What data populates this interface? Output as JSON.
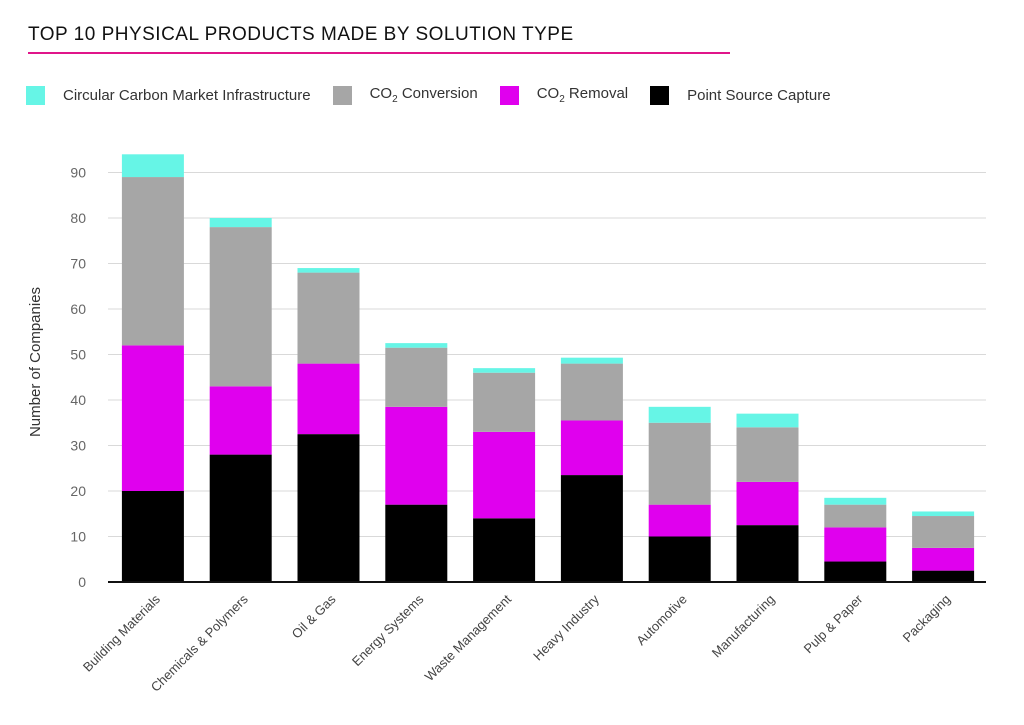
{
  "chart_data": {
    "type": "bar",
    "stacked": true,
    "title": "TOP 10 PHYSICAL PRODUCTS MADE BY SOLUTION TYPE",
    "ylabel": "Number of Companies",
    "xlabel": "",
    "ylim": [
      0,
      95
    ],
    "yticks": [
      0,
      10,
      20,
      30,
      40,
      50,
      60,
      70,
      80,
      90
    ],
    "grid": true,
    "legend_position": "top",
    "categories": [
      "Building Materials",
      "Chemicals & Polymers",
      "Oil & Gas",
      "Energy Systems",
      "Waste Management",
      "Heavy Industry",
      "Automotive",
      "Manufacturing",
      "Pulp & Paper",
      "Packaging"
    ],
    "series": [
      {
        "name": "Point Source Capture",
        "color": "#000000",
        "values": [
          20,
          28,
          32.5,
          17,
          14,
          23.5,
          10,
          12.5,
          4.5,
          2.5
        ]
      },
      {
        "name": "CO2 Removal",
        "color": "#e000ee",
        "values": [
          32,
          15,
          15.5,
          21.5,
          19,
          12,
          7,
          9.5,
          7.5,
          5
        ]
      },
      {
        "name": "CO2 Conversion",
        "color": "#a6a6a6",
        "values": [
          37,
          35,
          20,
          13,
          13,
          12.5,
          18,
          12,
          5,
          7
        ]
      },
      {
        "name": "Circular Carbon Market Infrastructure",
        "color": "#66f5e6",
        "values": [
          5,
          2,
          1,
          1,
          1,
          1.3,
          3.5,
          3,
          1.5,
          1
        ]
      }
    ]
  },
  "legend": [
    {
      "main": "Circular Carbon Market Infrastructure",
      "sub": "",
      "suffix": "",
      "color": "#66f5e6"
    },
    {
      "main": "CO",
      "sub": "2",
      "suffix": " Conversion",
      "color": "#a6a6a6"
    },
    {
      "main": "CO",
      "sub": "2",
      "suffix": " Removal",
      "color": "#e000ee"
    },
    {
      "main": "Point Source Capture",
      "sub": "",
      "suffix": "",
      "color": "#000000"
    }
  ]
}
